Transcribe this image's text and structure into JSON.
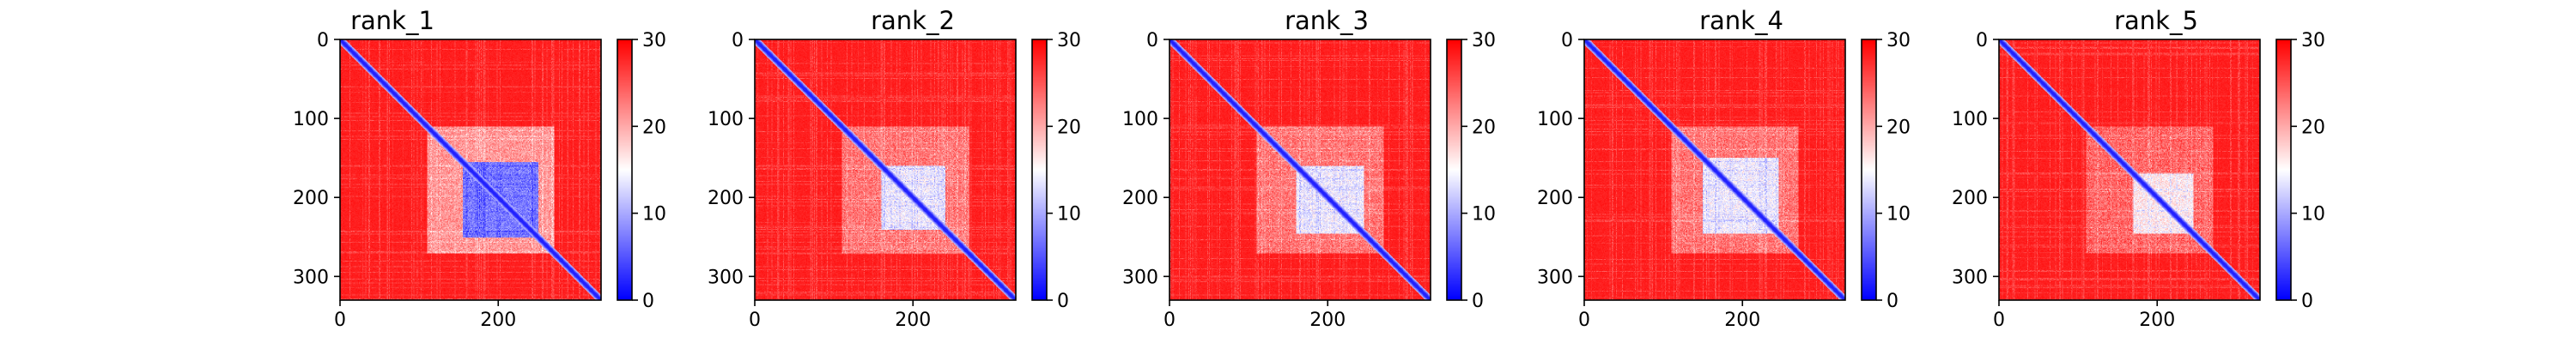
{
  "chart_data": [
    {
      "type": "heatmap",
      "title": "rank_1",
      "xlabel": "",
      "ylabel": "",
      "xlim": [
        0,
        330
      ],
      "ylim": [
        330,
        0
      ],
      "x_ticks": [
        0,
        200
      ],
      "y_ticks": [
        0,
        100,
        200,
        300
      ],
      "colorbar": {
        "min": 0,
        "max": 30,
        "ticks": [
          0,
          10,
          20,
          30
        ],
        "colormap": "bwr"
      },
      "features": {
        "diagonal_value": 2,
        "background_value": 29,
        "domain_start": 110,
        "domain_end": 270,
        "domain_value": 19,
        "core_start": 155,
        "core_end": 250,
        "core_value": 5
      }
    },
    {
      "type": "heatmap",
      "title": "rank_2",
      "xlabel": "",
      "ylabel": "",
      "xlim": [
        0,
        330
      ],
      "ylim": [
        330,
        0
      ],
      "x_ticks": [
        0,
        200
      ],
      "y_ticks": [
        0,
        100,
        200,
        300
      ],
      "colorbar": {
        "min": 0,
        "max": 30,
        "ticks": [
          0,
          10,
          20,
          30
        ],
        "colormap": "bwr"
      },
      "features": {
        "diagonal_value": 2,
        "background_value": 29,
        "domain_start": 110,
        "domain_end": 270,
        "domain_value": 21,
        "core_start": 160,
        "core_end": 240,
        "core_value": 12
      }
    },
    {
      "type": "heatmap",
      "title": "rank_3",
      "xlabel": "",
      "ylabel": "",
      "xlim": [
        0,
        330
      ],
      "ylim": [
        330,
        0
      ],
      "x_ticks": [
        0,
        200
      ],
      "y_ticks": [
        0,
        100,
        200,
        300
      ],
      "colorbar": {
        "min": 0,
        "max": 30,
        "ticks": [
          0,
          10,
          20,
          30
        ],
        "colormap": "bwr"
      },
      "features": {
        "diagonal_value": 2,
        "background_value": 29,
        "domain_start": 110,
        "domain_end": 270,
        "domain_value": 21,
        "core_start": 160,
        "core_end": 245,
        "core_value": 12
      }
    },
    {
      "type": "heatmap",
      "title": "rank_4",
      "xlabel": "",
      "ylabel": "",
      "xlim": [
        0,
        330
      ],
      "ylim": [
        330,
        0
      ],
      "x_ticks": [
        0,
        200
      ],
      "y_ticks": [
        0,
        100,
        200,
        300
      ],
      "colorbar": {
        "min": 0,
        "max": 30,
        "ticks": [
          0,
          10,
          20,
          30
        ],
        "colormap": "bwr"
      },
      "features": {
        "diagonal_value": 2,
        "background_value": 29,
        "domain_start": 110,
        "domain_end": 270,
        "domain_value": 21,
        "core_start": 150,
        "core_end": 245,
        "core_value": 12
      }
    },
    {
      "type": "heatmap",
      "title": "rank_5",
      "xlabel": "",
      "ylabel": "",
      "xlim": [
        0,
        330
      ],
      "ylim": [
        330,
        0
      ],
      "x_ticks": [
        0,
        200
      ],
      "y_ticks": [
        0,
        100,
        200,
        300
      ],
      "colorbar": {
        "min": 0,
        "max": 30,
        "ticks": [
          0,
          10,
          20,
          30
        ],
        "colormap": "bwr"
      },
      "features": {
        "diagonal_value": 2,
        "background_value": 29,
        "domain_start": 110,
        "domain_end": 270,
        "domain_value": 22,
        "core_start": 170,
        "core_end": 245,
        "core_value": 14
      }
    }
  ]
}
